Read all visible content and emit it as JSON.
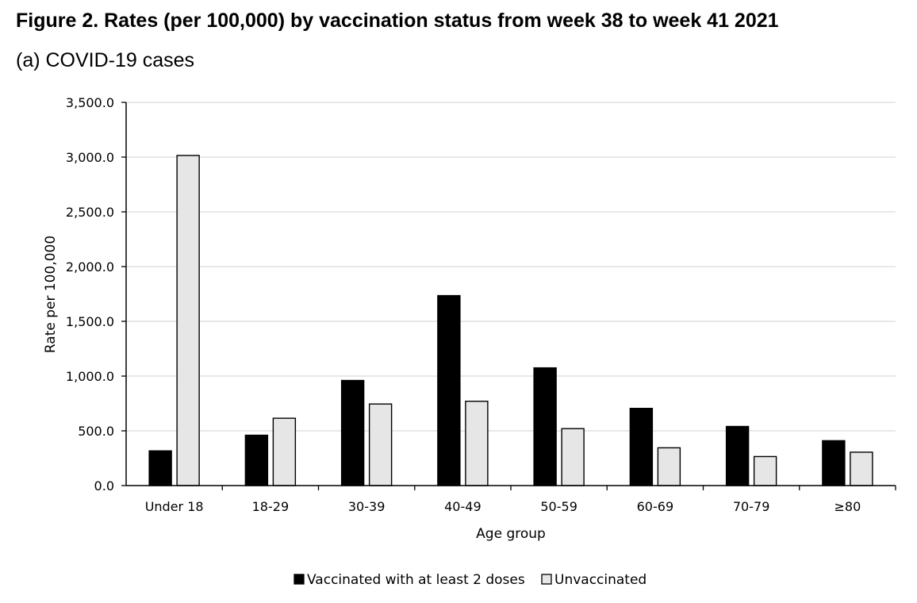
{
  "figure": {
    "title": "Figure 2. Rates (per 100,000) by vaccination status from week 38 to week 41 2021",
    "subtitle": "(a) COVID-19 cases"
  },
  "colors": {
    "vaccinated": "#000000",
    "unvaccinated": "#e6e6e6",
    "gridline": "#d9d9d9",
    "axis": "#000000"
  },
  "chart_data": {
    "type": "bar",
    "title": "",
    "xlabel": "Age group",
    "ylabel": "Rate per 100,000",
    "ylim": [
      0,
      3500
    ],
    "yticks": [
      0,
      500,
      1000,
      1500,
      2000,
      2500,
      3000,
      3500
    ],
    "ytick_labels": [
      "0.0",
      "500.0",
      "1,000.0",
      "1,500.0",
      "2,000.0",
      "2,500.0",
      "3,000.0",
      "3,500.0"
    ],
    "grid": true,
    "legend_position": "bottom-center",
    "categories": [
      "Under 18",
      "18-29",
      "30-39",
      "40-49",
      "50-59",
      "60-69",
      "70-79",
      "≥80"
    ],
    "series": [
      {
        "name": "Vaccinated with at least 2 doses",
        "values": [
          317,
          460,
          960,
          1735,
          1075,
          705,
          540,
          410
        ]
      },
      {
        "name": "Unvaccinated",
        "values": [
          3015,
          615,
          745,
          770,
          520,
          345,
          265,
          305
        ]
      }
    ]
  }
}
